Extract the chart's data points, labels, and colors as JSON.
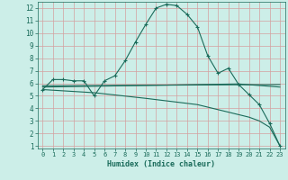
{
  "xlabel": "Humidex (Indice chaleur)",
  "bg_color": "#cceee8",
  "grid_color": "#d4a0a0",
  "line_color": "#1a6b5a",
  "xticks": [
    0,
    1,
    2,
    3,
    4,
    5,
    6,
    7,
    8,
    9,
    10,
    11,
    12,
    13,
    14,
    15,
    16,
    17,
    18,
    19,
    20,
    21,
    22,
    23
  ],
  "yticks": [
    1,
    2,
    3,
    4,
    5,
    6,
    7,
    8,
    9,
    10,
    11,
    12
  ],
  "line1_x": [
    0,
    1,
    2,
    3,
    4,
    5,
    6,
    7,
    8,
    9,
    10,
    11,
    12,
    13,
    14,
    15,
    16,
    17,
    18,
    19,
    20,
    21,
    22,
    23
  ],
  "line1_y": [
    5.5,
    6.3,
    6.3,
    6.2,
    6.2,
    5.0,
    6.2,
    6.6,
    7.8,
    9.3,
    10.7,
    12.0,
    12.3,
    12.2,
    11.5,
    10.5,
    8.2,
    6.8,
    7.2,
    5.9,
    5.1,
    4.3,
    2.8,
    1.0
  ],
  "line2_x": [
    0,
    23
  ],
  "line2_y": [
    5.8,
    5.9
  ],
  "line3_x": [
    0,
    19,
    23
  ],
  "line3_y": [
    5.7,
    5.95,
    5.7
  ],
  "line4_x": [
    0,
    1,
    2,
    3,
    4,
    5,
    10,
    15,
    19,
    20,
    21,
    22,
    23
  ],
  "line4_y": [
    5.5,
    5.45,
    5.4,
    5.35,
    5.3,
    5.25,
    4.8,
    4.3,
    3.5,
    3.3,
    3.0,
    2.5,
    1.0
  ],
  "xlim": [
    -0.5,
    23.5
  ],
  "ylim": [
    0.8,
    12.5
  ]
}
